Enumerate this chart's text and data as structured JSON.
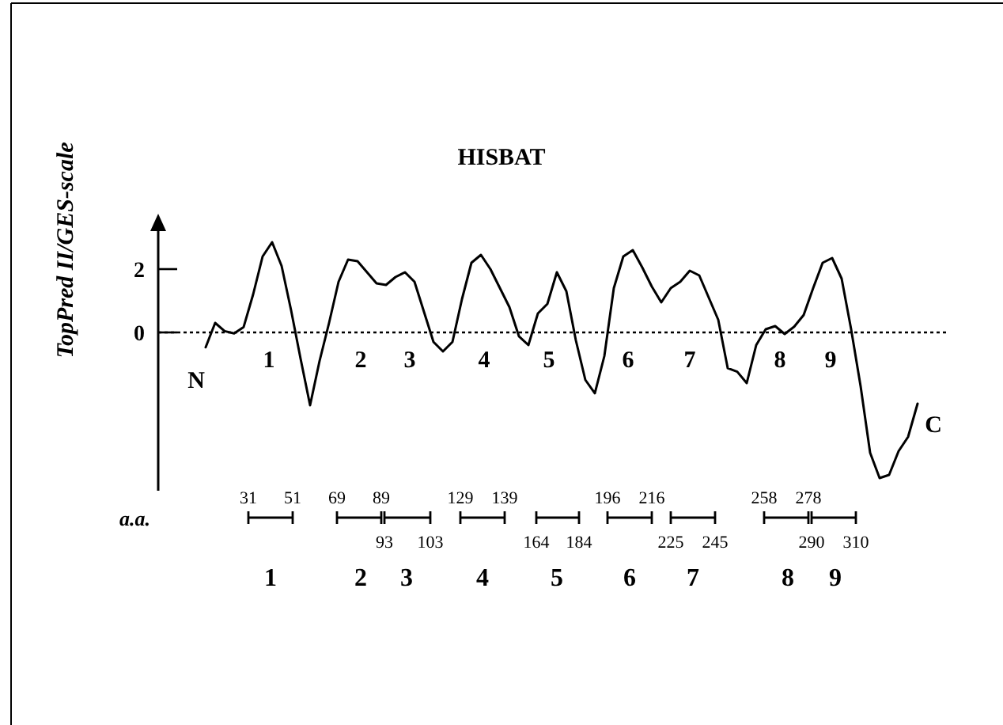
{
  "chart_data": {
    "type": "line",
    "title": "HISBAT",
    "ylabel": "TopPred II/GES-scale",
    "categories": [
      null,
      null,
      null,
      null,
      null,
      null,
      null,
      null,
      null,
      null,
      null,
      null,
      null,
      null,
      null,
      null,
      null,
      null,
      null,
      null,
      null,
      null,
      null,
      null,
      null,
      null,
      null,
      null,
      null,
      null,
      null,
      null,
      null,
      null,
      null,
      null,
      null,
      null,
      null,
      null,
      null,
      null,
      null,
      null,
      null,
      null,
      null,
      null,
      null,
      null,
      null,
      null,
      null,
      null,
      null,
      null,
      null,
      null,
      null,
      null,
      null,
      null,
      null,
      null,
      null,
      null,
      null,
      null,
      null,
      null,
      null,
      null,
      null,
      null,
      null,
      null
    ],
    "series": [
      {
        "color": "#000000",
        "values": [
          -0.47,
          0.3,
          0.04,
          -0.03,
          0.17,
          1.2,
          2.4,
          2.85,
          2.1,
          0.7,
          -0.83,
          -2.3,
          -0.9,
          0.3,
          1.6,
          2.3,
          2.25,
          1.9,
          1.55,
          1.5,
          1.75,
          1.9,
          1.6,
          0.65,
          -0.3,
          -0.6,
          -0.3,
          1.05,
          2.2,
          2.45,
          2.0,
          1.4,
          0.8,
          -0.12,
          -0.4,
          0.6,
          0.9,
          1.9,
          1.3,
          -0.25,
          -1.5,
          -1.92,
          -0.75,
          1.4,
          2.4,
          2.6,
          2.05,
          1.45,
          0.95,
          1.4,
          1.6,
          1.95,
          1.8,
          1.1,
          0.4,
          -1.13,
          -1.24,
          -1.6,
          -0.4,
          0.1,
          0.2,
          -0.05,
          0.18,
          0.55,
          1.4,
          2.2,
          2.35,
          1.7,
          0.1,
          -1.7,
          -3.8,
          -4.6,
          -4.5,
          -3.75,
          -3.3,
          -2.25
        ]
      }
    ],
    "ylim": [
      -5,
      3.2
    ],
    "yticks": [
      0,
      2
    ],
    "tick_labels": "y",
    "grid": false,
    "marker": "none",
    "line_style": "solid",
    "ref_lines": [
      {
        "axis": "y",
        "value": 0,
        "line_style": "dotted",
        "color": "#000000"
      }
    ],
    "annotations": [
      "a.a.",
      "31",
      "51",
      "69",
      "89",
      "93",
      "103",
      "129",
      "139",
      "164",
      "184",
      "196",
      "216",
      "225",
      "245",
      "258",
      "278",
      "290",
      "310",
      "1",
      "2",
      "3",
      "4",
      "5",
      "6",
      "7",
      "8",
      "9",
      "N",
      "1",
      "2",
      "3",
      "4",
      "5",
      "6",
      "7",
      "8",
      "9",
      "C"
    ]
  }
}
